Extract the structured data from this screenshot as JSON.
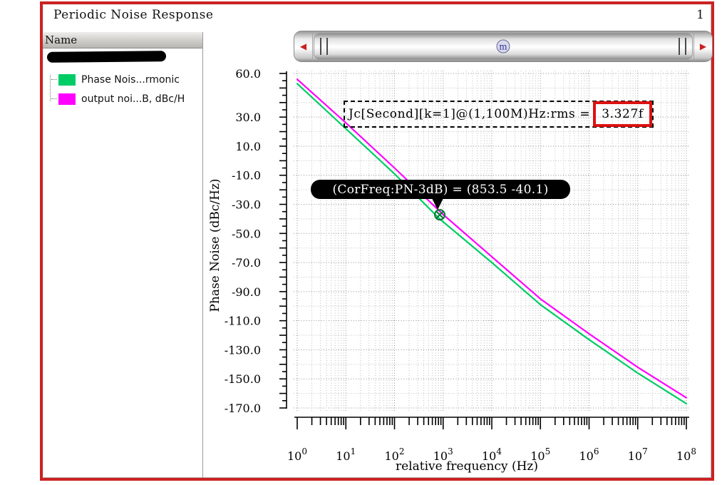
{
  "window": {
    "title": "Periodic Noise Response",
    "page_number": "1"
  },
  "sidebar": {
    "header": "Name",
    "redacted_item": "blacked-out trace name",
    "items": [
      {
        "label": "Phase Nois...rmonic",
        "color": "#00cc66"
      },
      {
        "label": "output noi...B, dBc/H",
        "color": "#ff00ff"
      }
    ]
  },
  "scrollbar": {
    "left_arrow": "◀",
    "right_arrow": "▶",
    "center_badge": "m"
  },
  "annotation": {
    "label": "Jc[Second][k=1]@(1,100M)Hz:rms =",
    "value": "3.327f",
    "highlight_color": "#dd1111"
  },
  "tooltip": {
    "text": "(CorFreq:PN-3dB) = (853.5 -40.1)"
  },
  "colors": {
    "window_border": "#cc2222",
    "arrow_red": "#cc2222",
    "marker_green": "#007a33",
    "grid_minor": "#bdbdbd",
    "grid_major": "#8f8f8f"
  },
  "chart_data": {
    "type": "line",
    "title": "Periodic Noise Response",
    "xlabel": "relative frequency (Hz)",
    "ylabel": "Phase Noise (dBc/Hz)",
    "x_scale": "log",
    "xlim": [
      1,
      100000000
    ],
    "ylim": [
      -170,
      60
    ],
    "x_tick_exponents": [
      0,
      1,
      2,
      3,
      4,
      5,
      6,
      7,
      8
    ],
    "y_tick_values": [
      60,
      30,
      10,
      -10,
      -30,
      -50,
      -70,
      -90,
      -110,
      -130,
      -150,
      -170
    ],
    "y_tick_labels": [
      "60.0",
      "30.0",
      "10.0",
      "-10.0",
      "-30.0",
      "-50.0",
      "-70.0",
      "-90.0",
      "-110.0",
      "-130.0",
      "-150.0",
      "-170.0"
    ],
    "grid": true,
    "legend_position": "left-panel",
    "series": [
      {
        "name": "Phase Nois...rmonic",
        "color": "#00cc66",
        "points": [
          [
            1,
            53
          ],
          [
            10,
            22
          ],
          [
            100,
            -9
          ],
          [
            853.5,
            -40.1
          ],
          [
            1000,
            -42
          ],
          [
            10000,
            -70
          ],
          [
            100000,
            -99
          ],
          [
            1000000,
            -123
          ],
          [
            10000000,
            -146
          ],
          [
            100000000,
            -167
          ]
        ]
      },
      {
        "name": "output noi...B, dBc/H",
        "color": "#ff00ff",
        "points": [
          [
            1,
            56
          ],
          [
            10,
            26
          ],
          [
            100,
            -5
          ],
          [
            1000,
            -37
          ],
          [
            10000,
            -66
          ],
          [
            100000,
            -95
          ],
          [
            1000000,
            -119
          ],
          [
            10000000,
            -142
          ],
          [
            100000000,
            -163
          ]
        ]
      }
    ],
    "marker": {
      "x": 853.5,
      "y": -40.1,
      "label": "(CorFreq:PN-3dB) = (853.5 -40.1)",
      "color": "#007a33"
    }
  }
}
